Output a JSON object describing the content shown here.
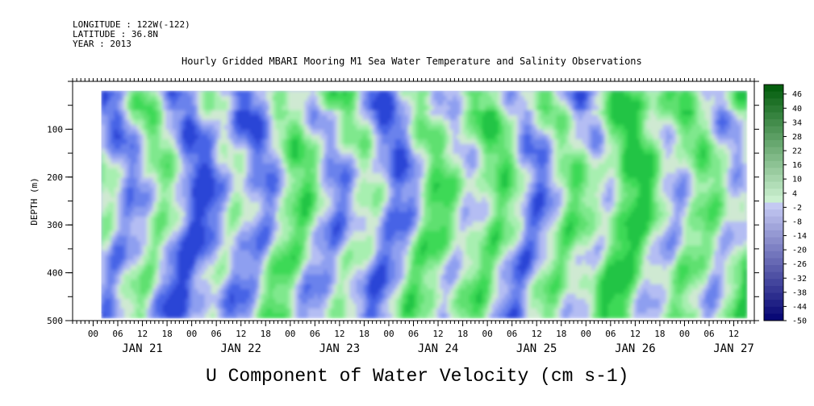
{
  "header": {
    "longitude": "LONGITUDE : 122W(-122)",
    "latitude": "LATITUDE : 36.8N",
    "year": "YEAR : 2013",
    "title": "Hourly Gridded MBARI Mooring M1 Sea Water Temperature and Salinity Observations"
  },
  "chart_data": {
    "type": "heatmap",
    "title": "Hourly Gridded MBARI Mooring M1 Sea Water Temperature and Salinity Observations",
    "xlabel": "U Component of Water Velocity (cm s-1)",
    "ylabel": "DEPTH (m)",
    "y_axis": {
      "range": [
        0,
        500
      ],
      "inverted": true,
      "ticks": [
        100,
        200,
        300,
        400,
        500
      ],
      "minor_step": 50
    },
    "x_axis": {
      "unit": "hour",
      "range_hours": [
        -5,
        161
      ],
      "hour_tick_labels": [
        "00",
        "06",
        "12",
        "18"
      ],
      "day_labels": [
        "JAN 21",
        "JAN 22",
        "JAN 23",
        "JAN 24",
        "JAN 25",
        "JAN 26",
        "JAN 27"
      ]
    },
    "data_extent": {
      "depth": [
        20,
        485
      ],
      "hours": [
        2,
        159
      ]
    },
    "colorbar": {
      "labels": [
        "46",
        "40",
        "34",
        "28",
        "22",
        "16",
        "10",
        "4",
        "-2",
        "-8",
        "-14",
        "-20",
        "-26",
        "-32",
        "-38",
        "-44",
        "-50"
      ],
      "min": -50,
      "max": 50,
      "step": 3
    },
    "colors": {
      "negative": "#7f8ff2",
      "positive": "#4fe06a"
    },
    "grid": false
  }
}
